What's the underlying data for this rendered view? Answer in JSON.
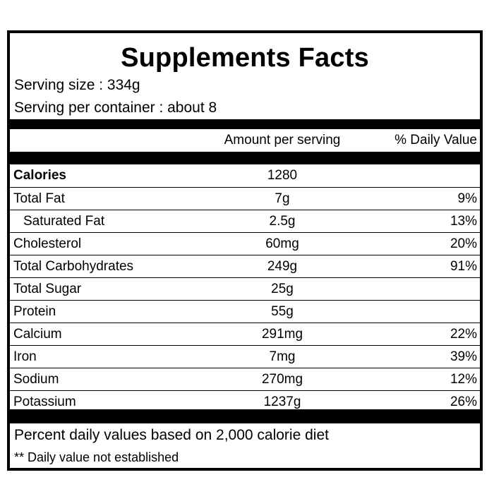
{
  "panel": {
    "title": "Supplements Facts",
    "serving_size": "Serving size : 334g",
    "servings_per_container": "Serving per container : about 8"
  },
  "table": {
    "headers": {
      "amount": "Amount per serving",
      "daily_value": "% Daily Value"
    },
    "rows": [
      {
        "name": "Calories",
        "amount": "1280",
        "dv": ""
      },
      {
        "name": "Total Fat",
        "amount": "7g",
        "dv": "9%"
      },
      {
        "name": "Saturated Fat",
        "amount": "2.5g",
        "dv": "13%"
      },
      {
        "name": "Cholesterol",
        "amount": "60mg",
        "dv": "20%"
      },
      {
        "name": "Total Carbohydrates",
        "amount": "249g",
        "dv": "91%"
      },
      {
        "name": "Total Sugar",
        "amount": "25g",
        "dv": ""
      },
      {
        "name": "Protein",
        "amount": "55g",
        "dv": ""
      },
      {
        "name": "Calcium",
        "amount": "291mg",
        "dv": "22%"
      },
      {
        "name": "Iron",
        "amount": "7mg",
        "dv": "39%"
      },
      {
        "name": "Sodium",
        "amount": "270mg",
        "dv": "12%"
      },
      {
        "name": "Potassium",
        "amount": "1237g",
        "dv": "26%"
      }
    ]
  },
  "footer": {
    "line1": "Percent daily values based on 2,000 calorie diet",
    "line2": "** Daily value not established"
  }
}
